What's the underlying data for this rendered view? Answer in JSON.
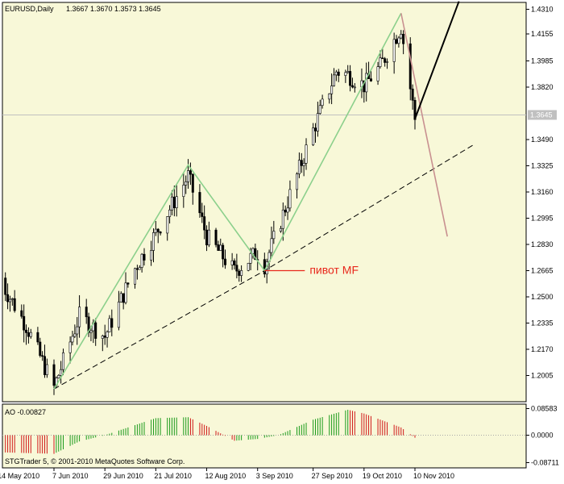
{
  "header": {
    "symbol_info": "EURUSD,Daily",
    "ohlc": "1.3667 1.3670 1.3573 1.3645"
  },
  "annotation": {
    "pivot_label": "пивот MF",
    "pivot_color": "#e8281c"
  },
  "indicator": {
    "title": "AO -0.00827",
    "ticks": [
      "0.08583",
      "0.0000",
      "-0.08711"
    ]
  },
  "copyright": "STGTrader 5, © 2001-2010 MetaQuotes Software Corp.",
  "current_price_label": "1.3645",
  "colors": {
    "background": "#f8f8d8",
    "zigzag": "#8cd08c",
    "projection_up": "#000000",
    "projection_down": "#c89090",
    "ao_up": "#1a9a1a",
    "ao_down": "#d01818"
  },
  "chart_data": {
    "type": "candlestick",
    "y_ticks": [
      "1.4310",
      "1.4155",
      "1.3985",
      "1.3820",
      "1.3490",
      "1.3325",
      "1.3160",
      "1.2995",
      "1.2830",
      "1.2665",
      "1.2500",
      "1.2335",
      "1.2170",
      "1.2005"
    ],
    "ylim": [
      1.1865,
      1.436
    ],
    "x_ticks": [
      "14 May 2010",
      "7 Jun 2010",
      "29 Jun 2010",
      "21 Jul 2010",
      "12 Aug 2010",
      "3 Sep 2010",
      "27 Sep 2010",
      "19 Oct 2010",
      "10 Nov 2010"
    ],
    "last_price": 1.3645,
    "zigzag": [
      {
        "date": "7 Jun 2010",
        "price": 1.192
      },
      {
        "date": "4 Aug 2010",
        "price": 1.333
      },
      {
        "date": "6 Sep 2010",
        "price": 1.2665
      },
      {
        "date": "4 Nov 2010",
        "price": 1.4285
      }
    ],
    "projection_up": [
      {
        "date": "10 Nov 2010",
        "price": 1.362
      },
      {
        "date": "29 Nov 2010",
        "price": 1.436
      }
    ],
    "projection_down": [
      {
        "date": "4 Nov 2010",
        "price": 1.4285
      },
      {
        "date": "24 Nov 2010",
        "price": 1.288
      }
    ],
    "trendline": [
      {
        "date": "7 Jun 2010",
        "price": 1.192
      },
      {
        "date": "6 Sep 2010",
        "price": 1.2665
      },
      {
        "date": "6 Dec 2010",
        "price": 1.3463
      }
    ],
    "pivot": {
      "date": "6 Sep 2010",
      "price": 1.2665
    }
  }
}
